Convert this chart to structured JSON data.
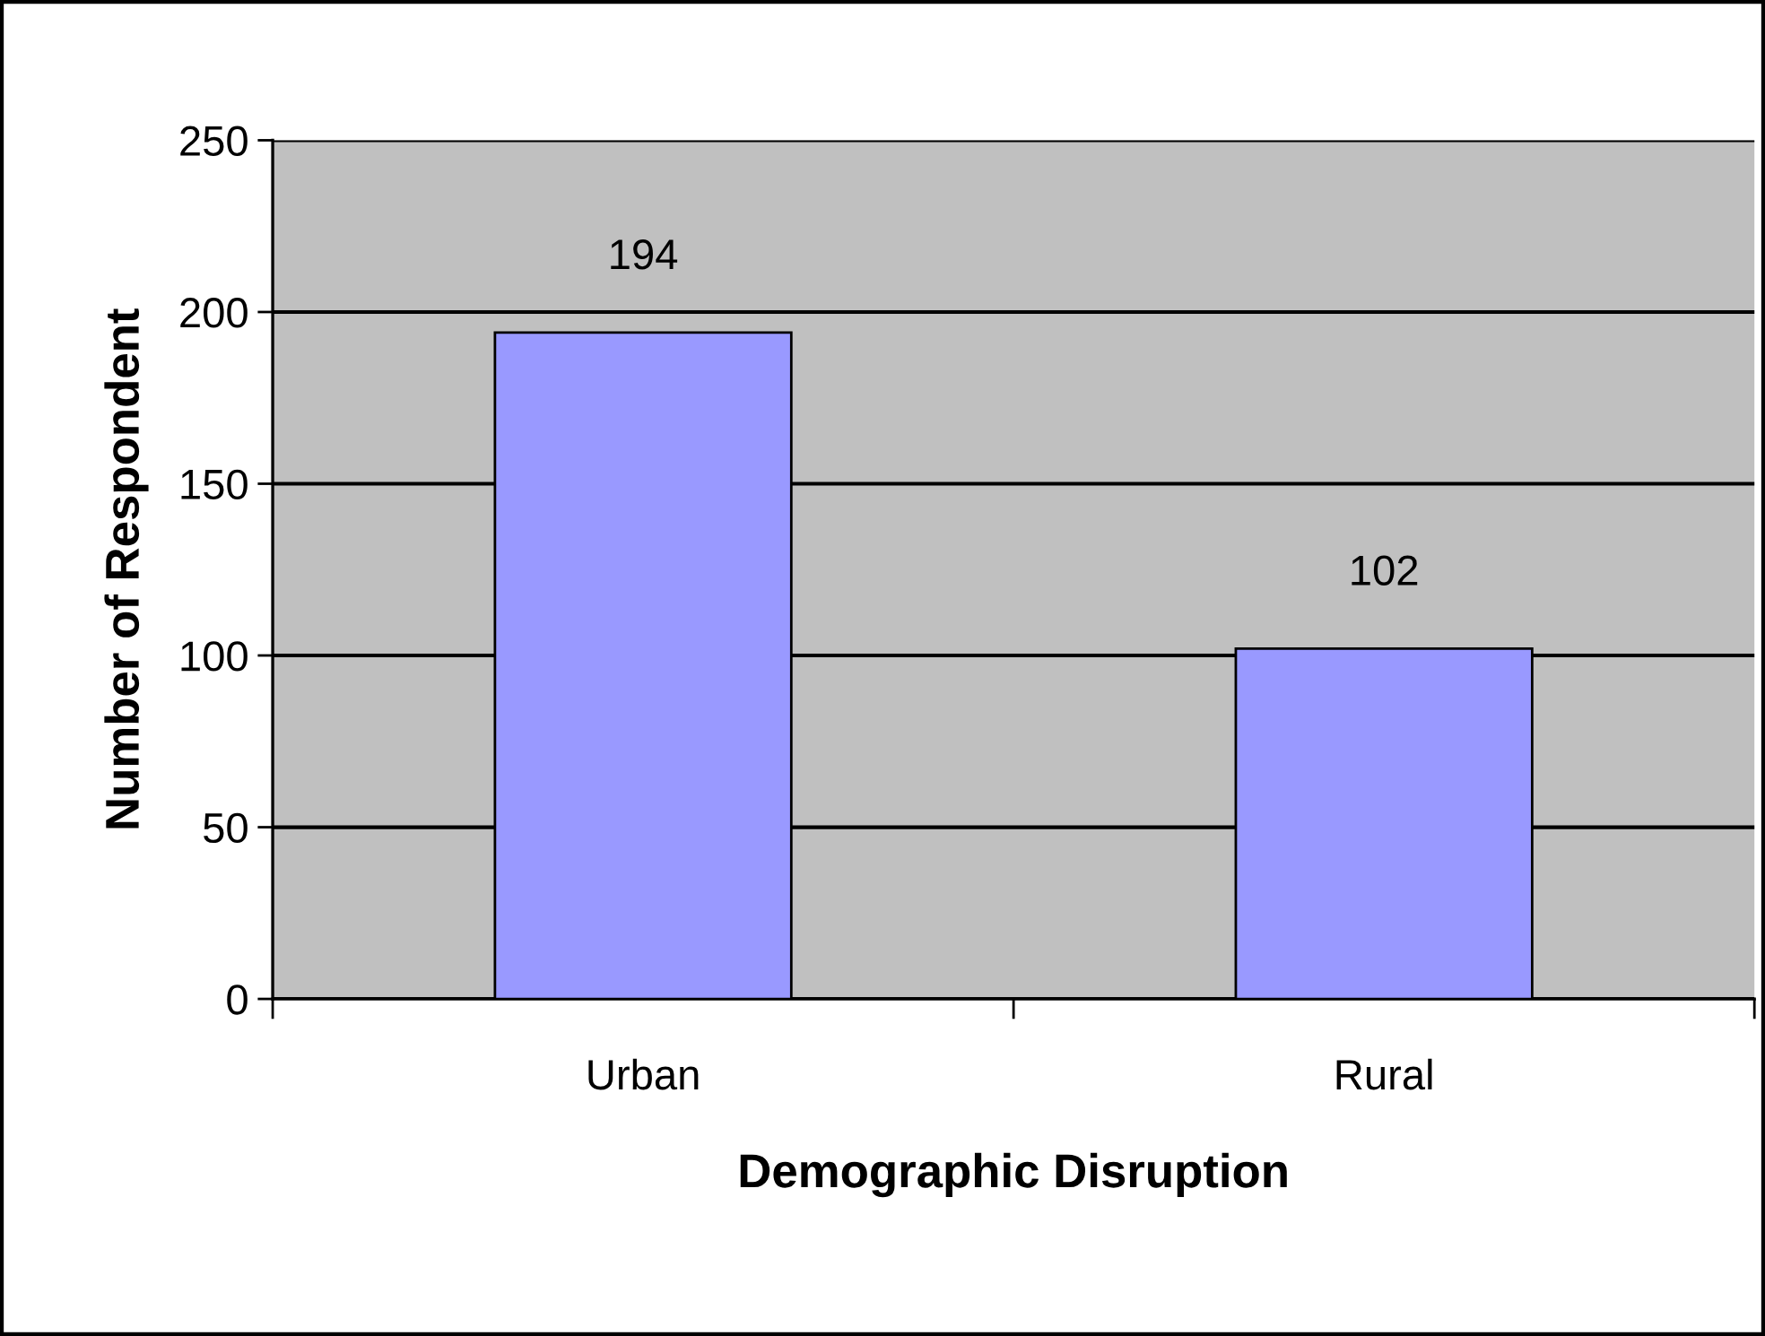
{
  "chart_data": {
    "type": "bar",
    "xlabel": "Demographic Disruption",
    "ylabel": "Number of Respondent",
    "categories": [
      "Urban",
      "Rural"
    ],
    "values": [
      194,
      102
    ],
    "color": "#9999ff",
    "ylim": [
      0,
      250
    ],
    "yticks": [
      0,
      50,
      100,
      150,
      200,
      250
    ],
    "grid": "y",
    "data_labels": true,
    "legend": false
  }
}
